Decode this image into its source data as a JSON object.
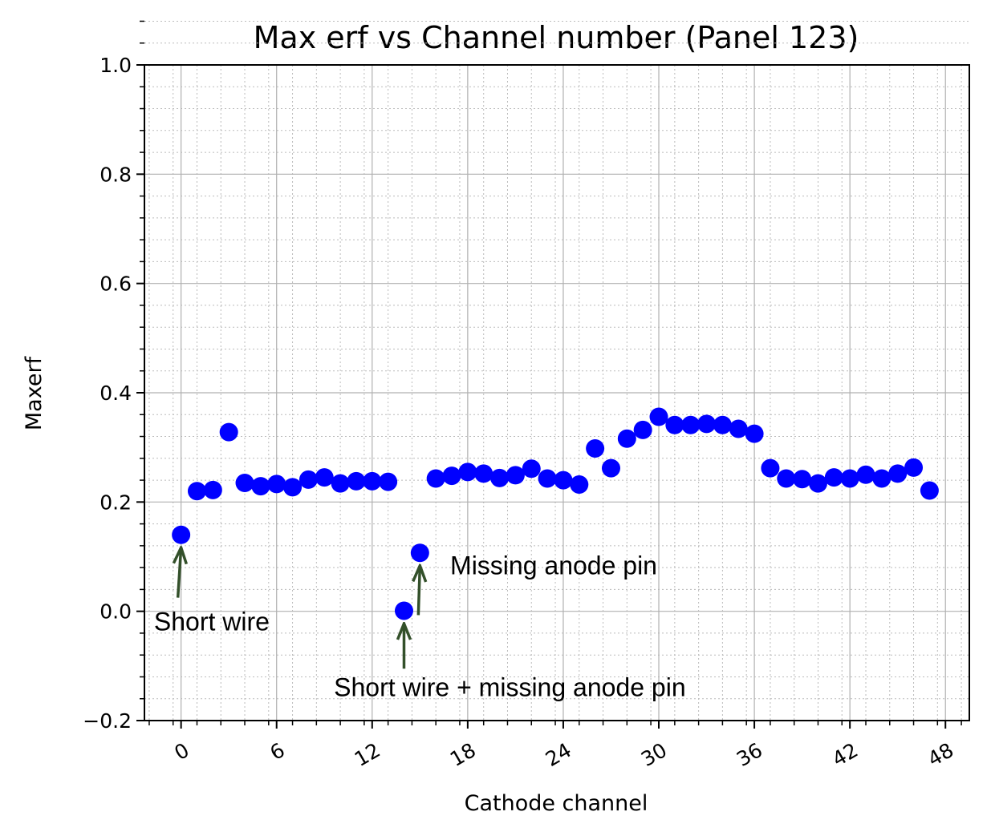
{
  "chart_data": {
    "type": "scatter",
    "title": "Max erf vs Channel number (Panel 123)",
    "xlabel": "Cathode channel",
    "ylabel": "Maxerf",
    "xlim": [
      -2.3,
      49.5
    ],
    "ylim": [
      -0.2,
      1.0
    ],
    "xticks": [
      0,
      6,
      12,
      18,
      24,
      30,
      36,
      42,
      48
    ],
    "yticks": [
      -0.2,
      0.0,
      0.2,
      0.4,
      0.6,
      0.8,
      1.0
    ],
    "ytick_labels": [
      "−0.2",
      "0.0",
      "0.2",
      "0.4",
      "0.6",
      "0.8",
      "1.0"
    ],
    "grid": true,
    "minor_grid": true,
    "marker_color": "#0000ff",
    "annotation_color": "#33502a",
    "series": [
      {
        "x": [
          0,
          1,
          2,
          3,
          4,
          5,
          6,
          7,
          8,
          9,
          10,
          11,
          12,
          13,
          14,
          15,
          16,
          17,
          18,
          19,
          20,
          21,
          22,
          23,
          24,
          25,
          26,
          27,
          28,
          29,
          30,
          31,
          32,
          33,
          34,
          35,
          36,
          37,
          38,
          39,
          40,
          41,
          42,
          43,
          44,
          45,
          46,
          47
        ],
        "y": [
          0.14,
          0.22,
          0.222,
          0.328,
          0.235,
          0.229,
          0.233,
          0.227,
          0.241,
          0.245,
          0.234,
          0.238,
          0.238,
          0.237,
          0.001,
          0.107,
          0.243,
          0.248,
          0.255,
          0.252,
          0.244,
          0.249,
          0.261,
          0.243,
          0.24,
          0.232,
          0.298,
          0.262,
          0.316,
          0.332,
          0.356,
          0.341,
          0.341,
          0.343,
          0.341,
          0.334,
          0.325,
          0.262,
          0.243,
          0.242,
          0.234,
          0.245,
          0.243,
          0.25,
          0.243,
          0.252,
          0.263,
          0.221
        ]
      }
    ],
    "annotations": [
      {
        "text": "Short wire",
        "point": [
          0,
          0.14
        ],
        "tail": [
          -0.2,
          0.025
        ],
        "text_pos": [
          -1.7,
          -0.035
        ]
      },
      {
        "text": "Short wire + missing anode pin",
        "point": [
          14,
          0.001
        ],
        "tail": [
          14,
          -0.105
        ],
        "text_pos": [
          9.6,
          -0.155
        ]
      },
      {
        "text": "Missing anode pin",
        "point": [
          15,
          0.107
        ],
        "tail": [
          14.9,
          -0.007
        ],
        "text_pos": [
          16.9,
          0.068
        ]
      }
    ]
  }
}
